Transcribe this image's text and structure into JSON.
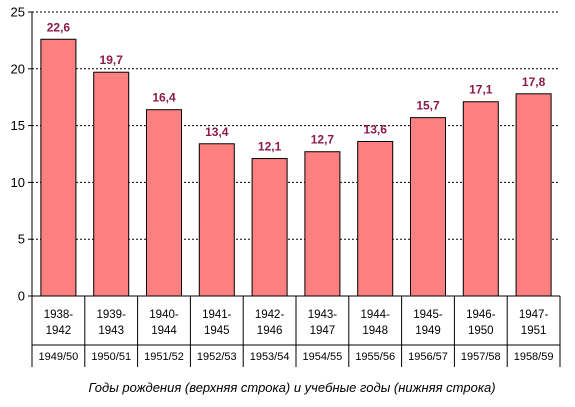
{
  "chart_data": {
    "type": "bar",
    "categories": [
      [
        "1938-",
        "1942"
      ],
      [
        "1939-",
        "1943"
      ],
      [
        "1940-",
        "1944"
      ],
      [
        "1941-",
        "1945"
      ],
      [
        "1942-",
        "1946"
      ],
      [
        "1943-",
        "1947"
      ],
      [
        "1944-",
        "1948"
      ],
      [
        "1945-",
        "1949"
      ],
      [
        "1946-",
        "1950"
      ],
      [
        "1947-",
        "1951"
      ]
    ],
    "school_years": [
      "1949/50",
      "1950/51",
      "1951/52",
      "1952/53",
      "1953/54",
      "1954/55",
      "1955/56",
      "1956/57",
      "1957/58",
      "1958/59"
    ],
    "values": [
      22.6,
      19.7,
      16.4,
      13.4,
      12.1,
      12.7,
      13.6,
      15.7,
      17.1,
      17.8
    ],
    "data_labels": [
      "22,6",
      "19,7",
      "16,4",
      "13,4",
      "12,1",
      "12,7",
      "13,6",
      "15,7",
      "17,1",
      "17,8"
    ],
    "y_ticks": [
      "0",
      "5",
      "10",
      "15",
      "20",
      "25"
    ],
    "ylim": [
      0,
      25
    ],
    "grid": "horizontal dashed",
    "xlabel": "Годы рождения (верхняя строка) и учебные годы (нижняя строка)",
    "colors": {
      "bar": "#ff8080",
      "bar_edge": "#000000",
      "data_label": "#8b1a4a"
    }
  }
}
